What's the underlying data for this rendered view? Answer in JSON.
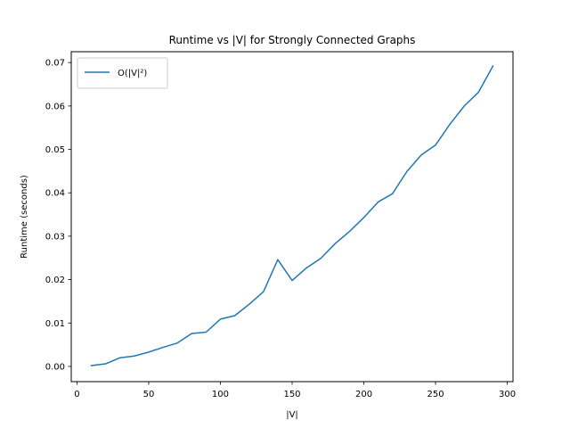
{
  "chart_data": {
    "type": "line",
    "title": "Runtime vs |V| for Strongly Connected Graphs",
    "xlabel": "|V|",
    "ylabel": "Runtime (seconds)",
    "xlim": [
      -4,
      304
    ],
    "ylim": [
      -0.0035,
      0.0725
    ],
    "xticks": [
      0,
      50,
      100,
      150,
      200,
      250,
      300
    ],
    "yticks": [
      0.0,
      0.01,
      0.02,
      0.03,
      0.04,
      0.05,
      0.06,
      0.07
    ],
    "ytick_labels": [
      "0.00",
      "0.01",
      "0.02",
      "0.03",
      "0.04",
      "0.05",
      "0.06",
      "0.07"
    ],
    "grid": false,
    "legend_position": "top-left",
    "series": [
      {
        "name": "O(|V|²)",
        "color": "#1f77b4",
        "x": [
          10,
          20,
          30,
          40,
          50,
          60,
          70,
          80,
          90,
          100,
          110,
          120,
          130,
          140,
          150,
          160,
          170,
          180,
          190,
          200,
          210,
          220,
          230,
          240,
          250,
          260,
          270,
          280,
          290
        ],
        "y": [
          0.0002,
          0.0006,
          0.002,
          0.0024,
          0.0033,
          0.0044,
          0.0054,
          0.0076,
          0.0079,
          0.0109,
          0.0117,
          0.0143,
          0.0172,
          0.0246,
          0.0198,
          0.0227,
          0.0249,
          0.0283,
          0.0311,
          0.0343,
          0.0379,
          0.0398,
          0.0449,
          0.0487,
          0.051,
          0.0558,
          0.06,
          0.0632,
          0.0692
        ]
      }
    ]
  }
}
